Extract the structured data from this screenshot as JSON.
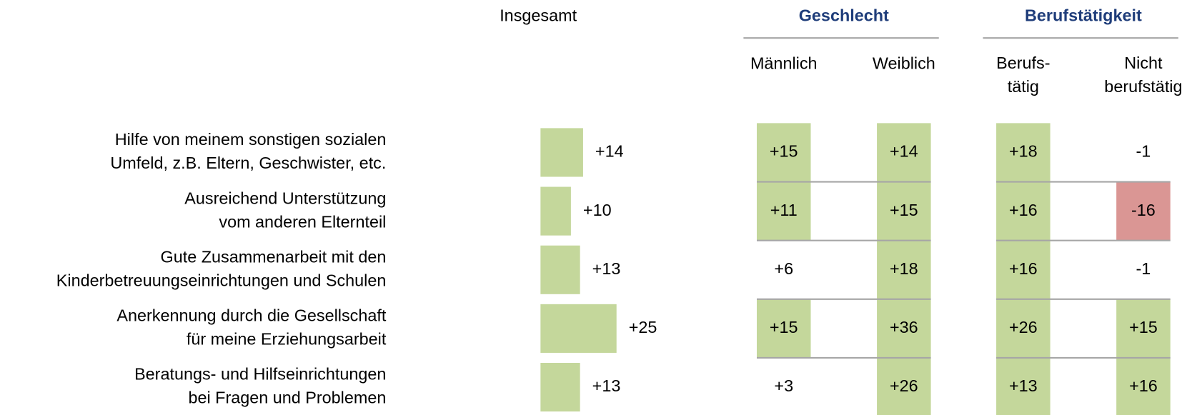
{
  "chart_data": {
    "type": "bar",
    "title": "Insgesamt",
    "categories": [
      [
        "Hilfe von meinem sonstigen sozialen",
        "Umfeld, z.B. Eltern, Geschwister, etc."
      ],
      [
        "Ausreichend Unterstützung",
        "vom anderen Elternteil"
      ],
      [
        "Gute Zusammenarbeit mit den",
        "Kinderbetreuungseinrichtungen und Schulen"
      ],
      [
        "Anerkennung durch die Gesellschaft",
        "für meine Erziehungsarbeit"
      ],
      [
        "Beratungs- und Hilfseinrichtungen",
        "bei Fragen und Problemen"
      ]
    ],
    "values": [
      14,
      10,
      13,
      25,
      13
    ],
    "value_labels": [
      "+14",
      "+10",
      "+13",
      "+25",
      "+13"
    ],
    "color": "#c4d79b",
    "groups": [
      {
        "name": "Geschlecht",
        "columns": [
          {
            "name": [
              "Männlich"
            ],
            "values": [
              15,
              11,
              6,
              15,
              3
            ],
            "value_labels": [
              "+15",
              "+11",
              "+6",
              "+15",
              "+3"
            ],
            "colors": [
              "#c4d79b",
              "#c4d79b",
              "#ffffff",
              "#c4d79b",
              "#ffffff"
            ]
          },
          {
            "name": [
              "Weiblich"
            ],
            "values": [
              14,
              15,
              18,
              36,
              26
            ],
            "value_labels": [
              "+14",
              "+15",
              "+18",
              "+36",
              "+26"
            ],
            "colors": [
              "#c4d79b",
              "#c4d79b",
              "#c4d79b",
              "#c4d79b",
              "#c4d79b"
            ]
          }
        ]
      },
      {
        "name": "Berufstätigkeit",
        "columns": [
          {
            "name": [
              "Berufs-",
              "tätig"
            ],
            "values": [
              18,
              16,
              16,
              26,
              13
            ],
            "value_labels": [
              "+18",
              "+16",
              "+16",
              "+26",
              "+13"
            ],
            "colors": [
              "#c4d79b",
              "#c4d79b",
              "#c4d79b",
              "#c4d79b",
              "#c4d79b"
            ]
          },
          {
            "name": [
              "Nicht",
              "berufstätig"
            ],
            "values": [
              -1,
              -16,
              -1,
              15,
              16
            ],
            "value_labels": [
              "-1",
              "-16",
              "-1",
              "+15",
              "+16"
            ],
            "colors": [
              "#ffffff",
              "#da9694",
              "#ffffff",
              "#c4d79b",
              "#c4d79b"
            ]
          }
        ]
      }
    ]
  }
}
